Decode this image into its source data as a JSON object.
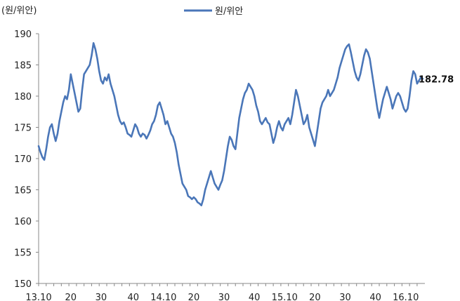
{
  "chart_data": {
    "type": "line",
    "unit_label": "(원/위안)",
    "legend": "top-center",
    "grid": false,
    "series": [
      {
        "name": "원/위안",
        "color": "#4a76b8",
        "values": [
          172.0,
          171.0,
          170.2,
          169.8,
          171.5,
          173.5,
          175.0,
          175.5,
          174.0,
          172.8,
          174.0,
          176.0,
          177.5,
          179.0,
          180.0,
          179.5,
          181.0,
          183.5,
          182.0,
          180.5,
          179.0,
          177.5,
          178.0,
          181.0,
          183.5,
          184.0,
          184.5,
          185.0,
          186.5,
          188.5,
          187.5,
          186.0,
          184.0,
          182.5,
          182.0,
          183.0,
          182.5,
          183.5,
          182.0,
          181.0,
          180.0,
          178.5,
          177.0,
          176.0,
          175.5,
          175.8,
          175.0,
          174.0,
          173.8,
          173.5,
          174.5,
          175.5,
          175.0,
          174.0,
          173.5,
          174.0,
          173.8,
          173.2,
          173.8,
          174.5,
          175.5,
          176.0,
          177.0,
          178.5,
          179.0,
          178.0,
          177.0,
          175.5,
          176.0,
          175.0,
          174.0,
          173.5,
          172.5,
          171.0,
          169.0,
          167.5,
          166.0,
          165.5,
          165.0,
          164.0,
          163.8,
          163.5,
          163.8,
          163.5,
          163.0,
          162.8,
          162.5,
          163.5,
          165.0,
          166.0,
          167.0,
          168.0,
          167.0,
          166.0,
          165.5,
          165.0,
          165.8,
          166.5,
          168.0,
          170.0,
          172.0,
          173.5,
          173.0,
          172.0,
          171.5,
          174.0,
          176.5,
          178.0,
          179.5,
          180.5,
          181.0,
          182.0,
          181.5,
          181.0,
          180.0,
          178.5,
          177.5,
          176.0,
          175.5,
          176.0,
          176.5,
          175.8,
          175.5,
          174.0,
          172.5,
          173.5,
          175.0,
          176.0,
          175.0,
          174.5,
          175.5,
          176.0,
          176.5,
          175.5,
          177.0,
          179.0,
          181.0,
          180.0,
          178.5,
          177.0,
          175.5,
          176.0,
          177.0,
          175.0,
          174.0,
          173.0,
          172.0,
          174.0,
          176.0,
          178.0,
          179.0,
          179.5,
          180.0,
          181.0,
          180.0,
          180.5,
          181.0,
          182.0,
          183.0,
          184.5,
          185.5,
          186.5,
          187.5,
          188.0,
          188.3,
          187.0,
          185.5,
          184.0,
          183.0,
          182.5,
          183.5,
          185.0,
          186.5,
          187.5,
          187.0,
          186.0,
          184.0,
          182.0,
          180.0,
          178.0,
          176.5,
          178.0,
          179.5,
          180.5,
          181.5,
          180.5,
          179.5,
          178.0,
          179.0,
          180.0,
          180.5,
          180.0,
          179.0,
          178.0,
          177.5,
          178.0,
          180.0,
          182.5,
          184.0,
          183.5,
          182.0,
          182.5,
          183.0,
          182.78
        ]
      }
    ],
    "x_tick_labels": [
      "13.10",
      "20",
      "30",
      "40",
      "14.10",
      "20",
      "30",
      "40",
      "15.10",
      "20",
      "30",
      "40",
      "16.10"
    ],
    "x_tick_index": [
      0,
      17,
      33,
      50,
      66,
      82,
      98,
      114,
      130,
      146,
      162,
      178,
      194
    ],
    "y_ticks": [
      150,
      155,
      160,
      165,
      170,
      175,
      180,
      185,
      190
    ],
    "ylim": [
      150,
      190
    ],
    "last_value_label": "182.78"
  }
}
